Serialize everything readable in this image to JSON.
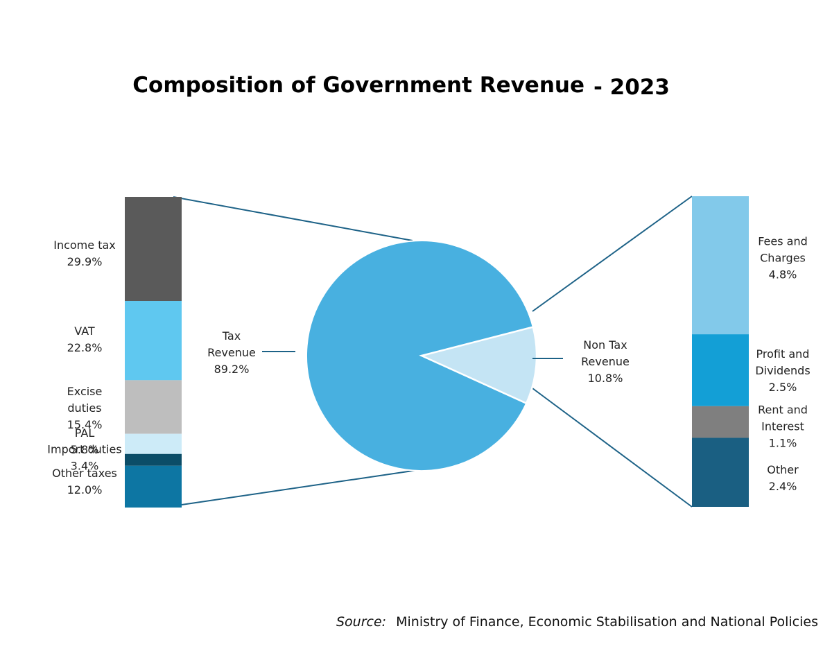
{
  "chart_data": {
    "type": "pie",
    "title": "Composition of Government Revenue",
    "title_suffix": "- 2023",
    "source_label": "Source:",
    "source_text": "Ministry of Finance, Economic Stabilisation and National Policies",
    "main": {
      "categories": [
        "Tax Revenue",
        "Non Tax Revenue"
      ],
      "label_lines": [
        [
          "Tax",
          "Revenue",
          "89.2%"
        ],
        [
          "Non Tax",
          "Revenue",
          "10.8%"
        ]
      ],
      "values": [
        89.2,
        10.8
      ],
      "colors": [
        "#48B0E0",
        "#C4E4F4"
      ]
    },
    "tax_breakdown": {
      "categories": [
        "Income tax",
        "VAT",
        "Excise duties",
        "PAL",
        "Import duties",
        "Other taxes"
      ],
      "values": [
        29.9,
        22.8,
        15.4,
        5.8,
        3.4,
        12.0
      ],
      "label_lines": [
        [
          "Income tax",
          "29.9%"
        ],
        [
          "VAT",
          "22.8%"
        ],
        [
          "Excise",
          "duties",
          "15.4%"
        ],
        [
          "PAL",
          "5.8%"
        ],
        [
          "Import duties",
          "3.4%"
        ],
        [
          "Other taxes",
          "12.0%"
        ]
      ],
      "colors": [
        "#5A5A5A",
        "#5FC8F0",
        "#BEBEBE",
        "#CDEBF8",
        "#0B4D68",
        "#0D76A3"
      ]
    },
    "non_tax_breakdown": {
      "categories": [
        "Fees and Charges",
        "Profit and Dividends",
        "Rent and Interest",
        "Other"
      ],
      "values": [
        4.8,
        2.5,
        1.1,
        2.4
      ],
      "label_lines": [
        [
          "Fees and",
          "Charges",
          "4.8%"
        ],
        [
          "Profit and",
          "Dividends",
          "2.5%"
        ],
        [
          "Rent and",
          "Interest",
          "1.1%"
        ],
        [
          "Other",
          "2.4%"
        ]
      ],
      "colors": [
        "#82C9EA",
        "#139FD6",
        "#7F7F7F",
        "#1A5F82"
      ]
    }
  }
}
